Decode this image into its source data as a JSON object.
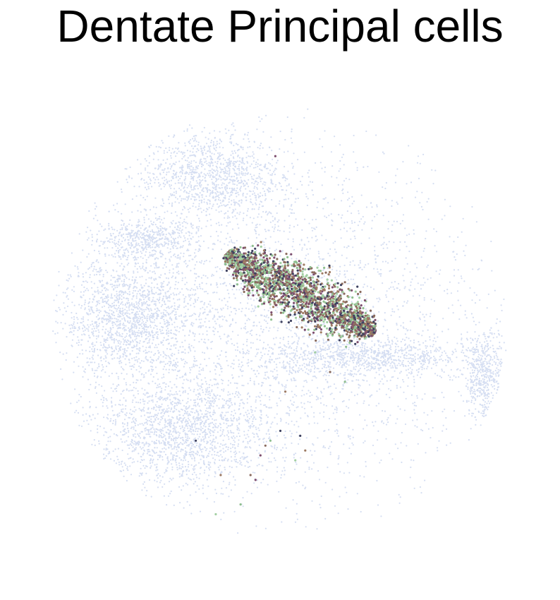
{
  "chart_data": {
    "type": "scatter",
    "title": "Dentate Principal cells",
    "xlabel": "",
    "ylabel": "",
    "axes_visible": false,
    "grid": false,
    "legend": "none",
    "xlim": [
      0,
      100
    ],
    "ylim": [
      0,
      100
    ],
    "background_series": {
      "name": "other cells",
      "color": "#d5def2",
      "regions": [
        {
          "cx": 20,
          "cy": 51,
          "rx": 14,
          "ry": 12,
          "n": 1600
        },
        {
          "cx": 30,
          "cy": 28,
          "rx": 17,
          "ry": 11,
          "n": 1600
        },
        {
          "cx": 36,
          "cy": 80,
          "rx": 14,
          "ry": 9,
          "n": 1100
        },
        {
          "cx": 67,
          "cy": 43,
          "rx": 21,
          "ry": 4,
          "n": 900
        },
        {
          "cx": 91,
          "cy": 39,
          "rx": 4,
          "ry": 9,
          "n": 500
        },
        {
          "cx": 23,
          "cy": 67,
          "rx": 10,
          "ry": 4,
          "n": 500
        },
        {
          "cx": 50,
          "cy": 50,
          "rx": 42,
          "ry": 37,
          "n": 3000
        }
      ]
    },
    "highlight_series": {
      "name": "Dentate Principal cells",
      "colors": [
        "#8a6b5e",
        "#8fbf8f",
        "#7d4e6e",
        "#3f4260",
        "#9e7b63",
        "#a3cfa3"
      ],
      "band": {
        "start": [
          39,
          64
        ],
        "end": [
          69,
          48
        ],
        "width": 5.5,
        "n": 2200
      },
      "scattered": [
        {
          "x": 47,
          "y": 25
        },
        {
          "x": 48,
          "y": 26
        },
        {
          "x": 46,
          "y": 23
        },
        {
          "x": 54,
          "y": 27
        },
        {
          "x": 55,
          "y": 24
        },
        {
          "x": 53,
          "y": 22
        },
        {
          "x": 44,
          "y": 19
        },
        {
          "x": 42,
          "y": 13
        },
        {
          "x": 45,
          "y": 18
        },
        {
          "x": 50,
          "y": 28
        },
        {
          "x": 51,
          "y": 36
        },
        {
          "x": 57,
          "y": 44
        },
        {
          "x": 60,
          "y": 40
        },
        {
          "x": 63,
          "y": 38
        },
        {
          "x": 49,
          "y": 84
        },
        {
          "x": 33,
          "y": 26
        },
        {
          "x": 38,
          "y": 19
        },
        {
          "x": 37,
          "y": 11
        }
      ]
    }
  }
}
